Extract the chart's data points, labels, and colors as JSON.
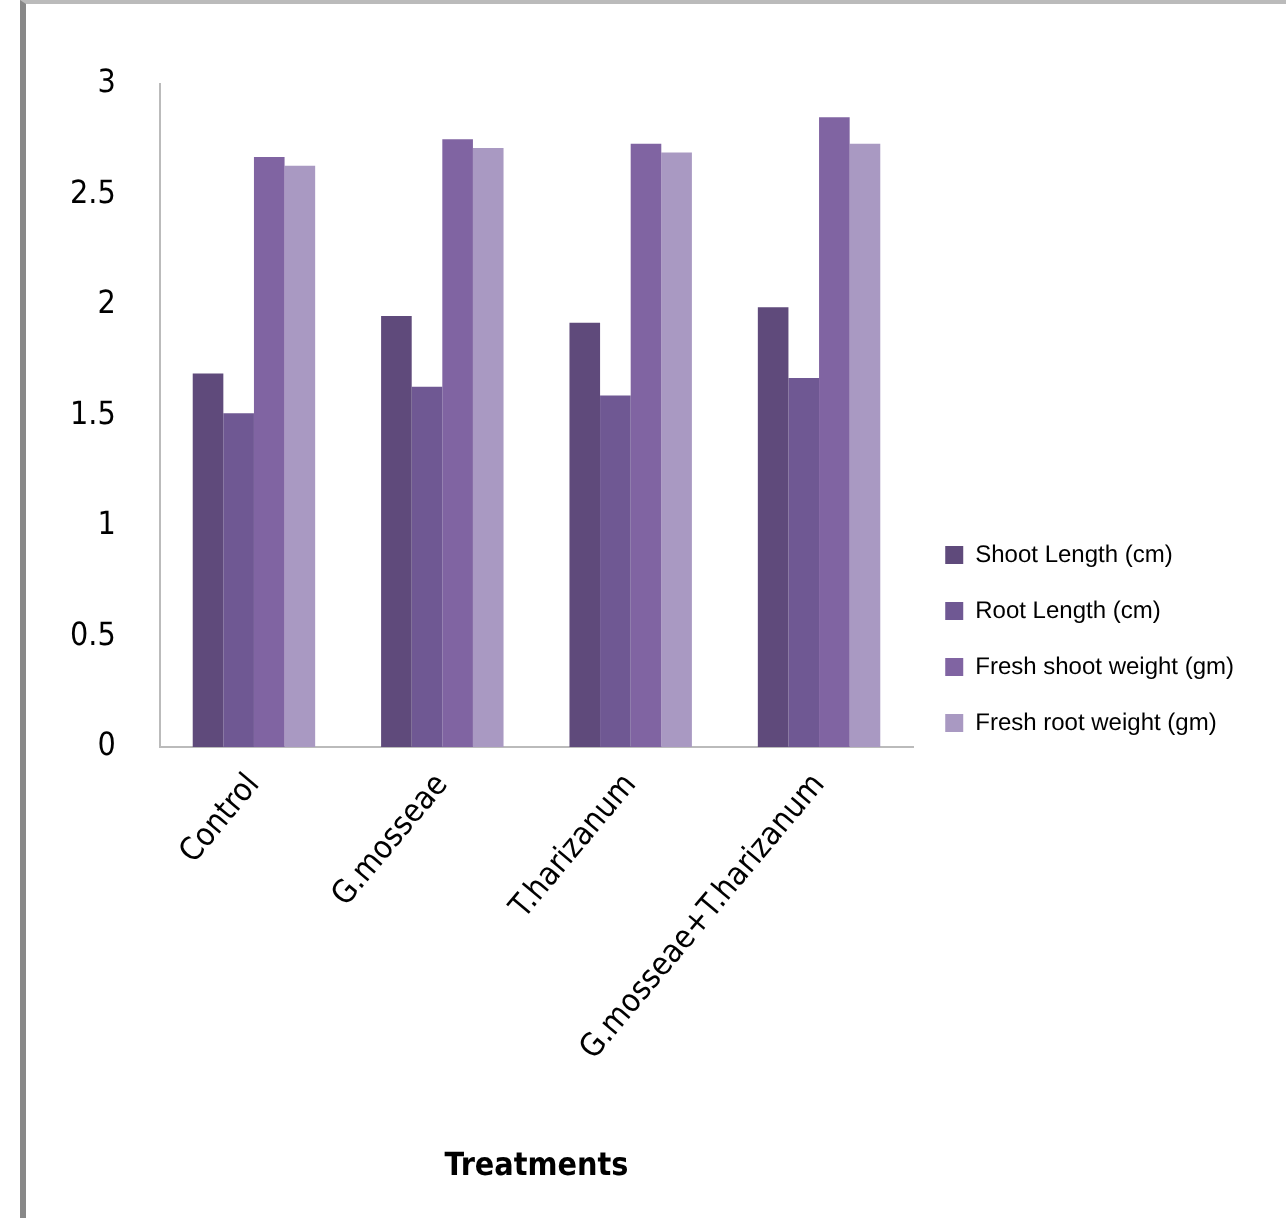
{
  "chart_data": {
    "type": "bar",
    "xlabel": "Treatments",
    "categories": [
      "Control",
      "G.mosseae",
      "T.harizanum",
      "G.mosseae+T.harizanum"
    ],
    "series": [
      {
        "name": "Shoot Length (cm)",
        "color": "#5f4a7b",
        "values": [
          1.69,
          1.95,
          1.92,
          1.99
        ]
      },
      {
        "name": "Root Length (cm)",
        "color": "#6f5893",
        "values": [
          1.51,
          1.63,
          1.59,
          1.67
        ]
      },
      {
        "name": "Fresh shoot weight (gm)",
        "color": "#8064a2",
        "values": [
          2.67,
          2.75,
          2.73,
          2.85
        ]
      },
      {
        "name": "Fresh root weight (gm)",
        "color": "#a999c2",
        "values": [
          2.63,
          2.71,
          2.69,
          2.73
        ]
      }
    ],
    "ylim": [
      0,
      3
    ],
    "yticks": [
      0,
      0.5,
      1,
      1.5,
      2,
      2.5,
      3
    ],
    "grid": false,
    "legend": "right"
  }
}
